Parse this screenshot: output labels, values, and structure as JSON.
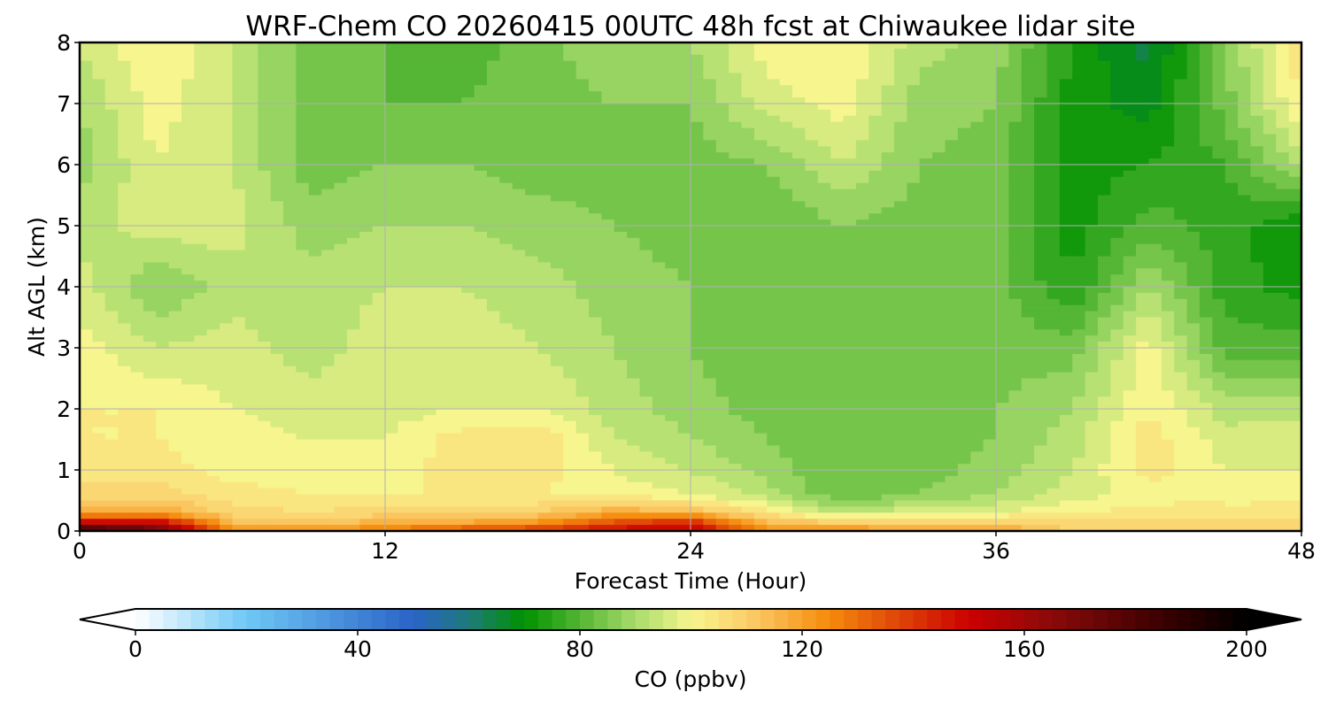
{
  "chart_data": {
    "type": "heatmap",
    "title": "WRF-Chem CO  20260415 00UTC 48h fcst at Chiwaukee lidar site",
    "xlabel": "Forecast Time (Hour)",
    "ylabel": "Alt AGL (km)",
    "xlim": [
      0,
      48
    ],
    "ylim": [
      0,
      8
    ],
    "xticks": [
      0,
      12,
      24,
      36,
      48
    ],
    "yticks": [
      0,
      1,
      2,
      3,
      4,
      5,
      6,
      7,
      8
    ],
    "grid": true,
    "colorbar": {
      "label": "CO  (ppbv)",
      "range": [
        0,
        200
      ],
      "ticks": [
        0,
        40,
        80,
        120,
        160,
        200
      ],
      "extend": "both",
      "stops": [
        {
          "v": 0,
          "c": "#ffffff"
        },
        {
          "v": 20,
          "c": "#6ec8f5"
        },
        {
          "v": 50,
          "c": "#2a63c7"
        },
        {
          "v": 60,
          "c": "#1f7a7a"
        },
        {
          "v": 70,
          "c": "#009100"
        },
        {
          "v": 80,
          "c": "#55b535"
        },
        {
          "v": 90,
          "c": "#a8dc6c"
        },
        {
          "v": 100,
          "c": "#f7f58e"
        },
        {
          "v": 110,
          "c": "#fbcf6c"
        },
        {
          "v": 125,
          "c": "#f58a0b"
        },
        {
          "v": 135,
          "c": "#e2520a"
        },
        {
          "v": 150,
          "c": "#cc0000"
        },
        {
          "v": 165,
          "c": "#8a0a0a"
        },
        {
          "v": 185,
          "c": "#3a0000"
        },
        {
          "v": 200,
          "c": "#000000"
        }
      ],
      "under_color": "#ffffff",
      "over_color": "#000000"
    },
    "x": [
      0,
      3,
      6,
      9,
      12,
      15,
      18,
      21,
      24,
      27,
      30,
      33,
      36,
      39,
      42,
      45,
      48
    ],
    "y": [
      0,
      0.1,
      0.3,
      0.6,
      1,
      1.5,
      2,
      3,
      4,
      5,
      6,
      7,
      8
    ],
    "values": [
      [
        195,
        175,
        125,
        125,
        130,
        140,
        145,
        150,
        150,
        125,
        122,
        122,
        120,
        110,
        110,
        110,
        110
      ],
      [
        160,
        160,
        115,
        112,
        118,
        120,
        125,
        140,
        150,
        115,
        115,
        112,
        112,
        108,
        108,
        108,
        108
      ],
      [
        118,
        118,
        108,
        106,
        108,
        108,
        110,
        118,
        115,
        104,
        92,
        98,
        98,
        102,
        104,
        104,
        104
      ],
      [
        108,
        108,
        104,
        102,
        102,
        102,
        102,
        100,
        98,
        92,
        82,
        86,
        90,
        96,
        100,
        100,
        100
      ],
      [
        104,
        104,
        100,
        100,
        100,
        104,
        104,
        98,
        94,
        88,
        82,
        84,
        88,
        94,
        104,
        98,
        98
      ],
      [
        102,
        102,
        100,
        98,
        98,
        104,
        106,
        94,
        90,
        86,
        82,
        84,
        86,
        92,
        104,
        96,
        96
      ],
      [
        102,
        102,
        98,
        96,
        96,
        98,
        98,
        92,
        88,
        84,
        82,
        84,
        86,
        90,
        102,
        92,
        92
      ],
      [
        100,
        94,
        96,
        92,
        96,
        96,
        94,
        90,
        86,
        82,
        82,
        84,
        84,
        84,
        100,
        80,
        80
      ],
      [
        96,
        86,
        92,
        92,
        94,
        94,
        92,
        88,
        86,
        82,
        84,
        84,
        84,
        74,
        90,
        76,
        72
      ],
      [
        92,
        96,
        96,
        88,
        90,
        90,
        88,
        86,
        84,
        82,
        86,
        84,
        84,
        72,
        80,
        76,
        70
      ],
      [
        88,
        98,
        94,
        84,
        86,
        86,
        84,
        84,
        84,
        86,
        94,
        86,
        84,
        72,
        74,
        78,
        92
      ],
      [
        90,
        100,
        94,
        84,
        82,
        82,
        84,
        86,
        86,
        96,
        100,
        88,
        86,
        72,
        68,
        84,
        102
      ],
      [
        95,
        102,
        94,
        84,
        82,
        80,
        84,
        90,
        90,
        100,
        102,
        92,
        88,
        74,
        64,
        86,
        106
      ]
    ]
  }
}
